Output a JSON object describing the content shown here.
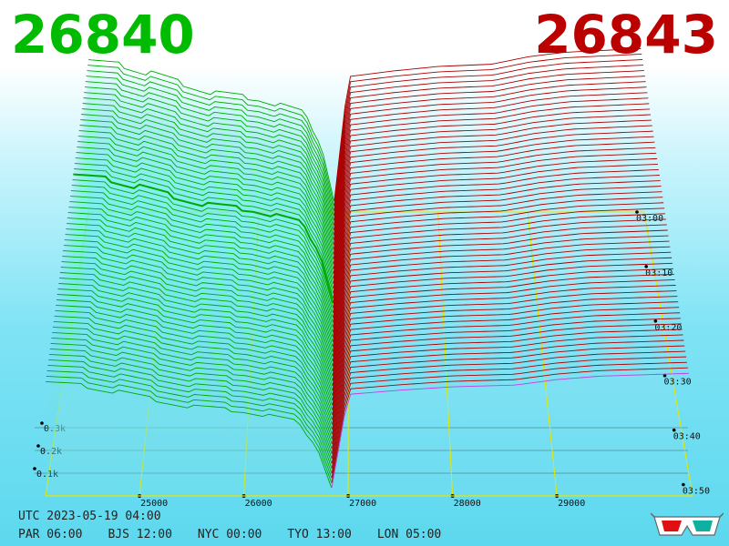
{
  "header": {
    "bid_price": "26840",
    "ask_price": "26843",
    "bid_color": "#00bb00",
    "ask_color": "#bb0000"
  },
  "footer": {
    "utc": "UTC 2023-05-19 04:00",
    "zones": [
      "PAR 06:00",
      "BJS 12:00",
      "NYC 00:00",
      "TYO 13:00",
      "LON 05:00"
    ]
  },
  "icons": {
    "glasses": "3d-glasses-icon"
  },
  "chart_data": {
    "type": "area",
    "title": "",
    "xlabel": "",
    "ylabel": "",
    "x_ticks": [
      25000,
      26000,
      27000,
      28000,
      29000
    ],
    "x_tick_labels": [
      "25000",
      "26000",
      "27000",
      "28000",
      "29000"
    ],
    "xlim": [
      24100,
      30300
    ],
    "volume_tick_labels": [
      "0.3k",
      "0.2k",
      "0.1k"
    ],
    "volume_ticks": [
      300,
      200,
      100
    ],
    "time_tick_labels": [
      "03:00",
      "03:10",
      "03:20",
      "03:30",
      "03:40",
      "03:50"
    ],
    "mid_price": 26841.5,
    "snapshots": 60,
    "series": [
      {
        "side": "bid",
        "color": "#00aa00",
        "depth_profile": [
          {
            "price": 26840,
            "volume": 20
          },
          {
            "price": 26700,
            "volume": 120
          },
          {
            "price": 26500,
            "volume": 180
          },
          {
            "price": 26000,
            "volume": 205
          },
          {
            "price": 25500,
            "volume": 215
          },
          {
            "price": 25000,
            "volume": 240
          },
          {
            "price": 24500,
            "volume": 265
          },
          {
            "price": 24100,
            "volume": 270
          }
        ]
      },
      {
        "side": "ask",
        "color": "#aa0000",
        "depth_profile": [
          {
            "price": 26843,
            "volume": 20
          },
          {
            "price": 27000,
            "volume": 240
          },
          {
            "price": 27500,
            "volume": 250
          },
          {
            "price": 28000,
            "volume": 258
          },
          {
            "price": 28600,
            "volume": 262
          },
          {
            "price": 29000,
            "volume": 275
          },
          {
            "price": 29400,
            "volume": 283
          },
          {
            "price": 30300,
            "volume": 290
          }
        ]
      }
    ],
    "grid": true
  }
}
